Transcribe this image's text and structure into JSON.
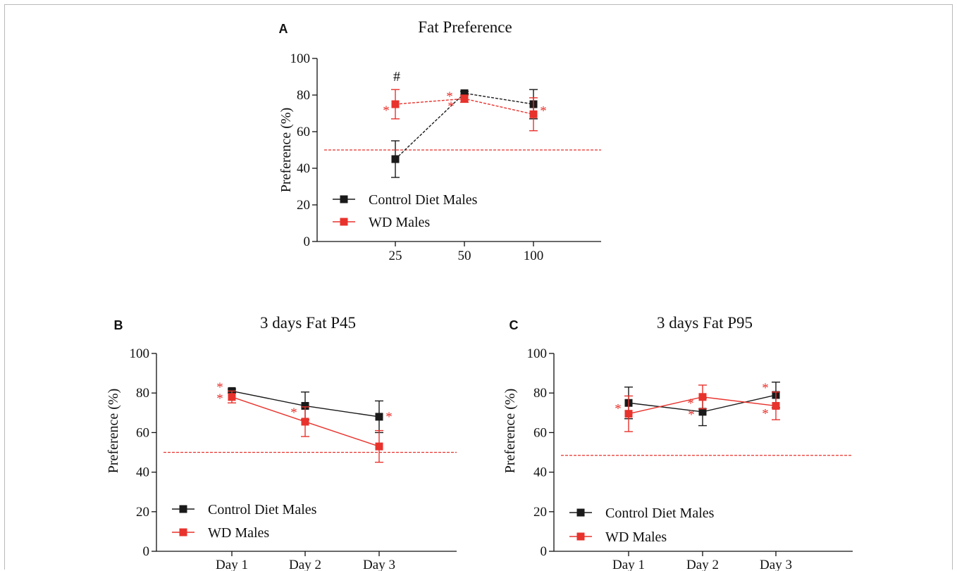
{
  "colors": {
    "control": "#1a1a1a",
    "wd": "#e8322c",
    "reference_line": "#e8322c",
    "frame": "#b9b9b9"
  },
  "chart_data": [
    {
      "panel_letter": "A",
      "type": "line",
      "title": "Fat Preference",
      "ylabel": "Preference (%)",
      "xlabel": "",
      "categories": [
        "25",
        "50",
        "100"
      ],
      "ylim": [
        0,
        100
      ],
      "yticks": [
        "0",
        "20",
        "40",
        "60",
        "80",
        "100"
      ],
      "reference_y": 50,
      "annotations": [
        "#"
      ],
      "significance_marker": "*",
      "series": [
        {
          "name": "Control Diet Males",
          "color": "#1a1a1a",
          "dashed": true,
          "values": [
            45,
            81,
            75
          ],
          "errors": [
            10,
            1,
            8
          ]
        },
        {
          "name": "WD Males",
          "color": "#e8322c",
          "dashed": true,
          "values": [
            75,
            78,
            69.5
          ],
          "errors": [
            8,
            2,
            9
          ]
        }
      ],
      "legend": [
        "Control Diet Males",
        "WD Males"
      ],
      "legend_position": "bottom-left"
    },
    {
      "panel_letter": "B",
      "type": "line",
      "title": "3 days Fat P45",
      "ylabel": "Preference (%)",
      "xlabel": "",
      "categories": [
        "Day 1",
        "Day 2",
        "Day 3"
      ],
      "ylim": [
        0,
        100
      ],
      "yticks": [
        "0",
        "20",
        "40",
        "60",
        "80",
        "100"
      ],
      "reference_y": 50,
      "significance_marker": "*",
      "series": [
        {
          "name": "Control Diet Males",
          "color": "#1a1a1a",
          "dashed": false,
          "values": [
            81,
            73.5,
            68
          ],
          "errors": [
            1,
            7,
            8
          ]
        },
        {
          "name": "WD Males",
          "color": "#e8322c",
          "dashed": false,
          "values": [
            78,
            65.5,
            53
          ],
          "errors": [
            3,
            7.5,
            8
          ]
        }
      ],
      "legend": [
        "Control Diet Males",
        "WD Males"
      ],
      "legend_position": "bottom-left"
    },
    {
      "panel_letter": "C",
      "type": "line",
      "title": "3 days Fat P95",
      "ylabel": "Preference (%)",
      "xlabel": "",
      "categories": [
        "Day 1",
        "Day 2",
        "Day 3"
      ],
      "ylim": [
        0,
        100
      ],
      "yticks": [
        "0",
        "20",
        "40",
        "60",
        "80",
        "100"
      ],
      "reference_y": 48.5,
      "significance_marker": "*",
      "series": [
        {
          "name": "Control Diet Males",
          "color": "#1a1a1a",
          "dashed": false,
          "values": [
            75,
            70.5,
            79
          ],
          "errors": [
            8,
            7,
            6.5
          ]
        },
        {
          "name": "WD Males",
          "color": "#e8322c",
          "dashed": false,
          "values": [
            69.5,
            78,
            73.5
          ],
          "errors": [
            9,
            6,
            7
          ]
        }
      ],
      "legend": [
        "Control Diet Males",
        "WD Males"
      ],
      "legend_position": "bottom-left"
    }
  ]
}
